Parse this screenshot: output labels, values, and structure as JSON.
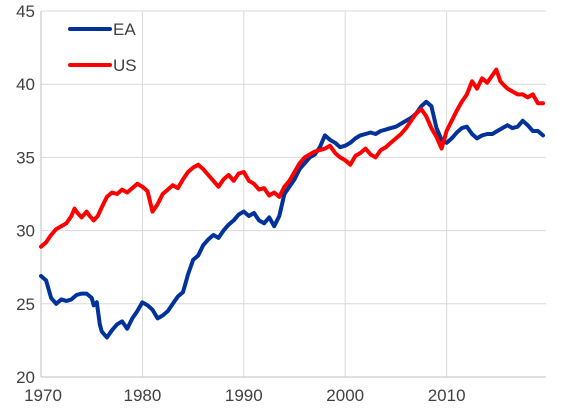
{
  "chart_data": {
    "type": "line",
    "title": "",
    "xlabel": "",
    "ylabel": "",
    "xlim": [
      1970,
      2019.8
    ],
    "ylim": [
      20,
      45
    ],
    "y_ticks": [
      20,
      25,
      30,
      35,
      40,
      45
    ],
    "x_ticks": [
      1970,
      1980,
      1990,
      2000,
      2010
    ],
    "grid": "both",
    "legend_position": "top-left",
    "series": [
      {
        "name": "EA",
        "color": "#003299",
        "points": [
          [
            1970.0,
            26.9
          ],
          [
            1970.5,
            26.6
          ],
          [
            1971.0,
            25.4
          ],
          [
            1971.5,
            25.0
          ],
          [
            1972.0,
            25.3
          ],
          [
            1972.5,
            25.2
          ],
          [
            1973.0,
            25.3
          ],
          [
            1973.5,
            25.6
          ],
          [
            1974.0,
            25.7
          ],
          [
            1974.5,
            25.7
          ],
          [
            1975.0,
            25.4
          ],
          [
            1975.2,
            24.9
          ],
          [
            1975.5,
            25.1
          ],
          [
            1975.8,
            23.6
          ],
          [
            1976.0,
            23.1
          ],
          [
            1976.5,
            22.7
          ],
          [
            1977.0,
            23.2
          ],
          [
            1977.5,
            23.6
          ],
          [
            1978.0,
            23.8
          ],
          [
            1978.5,
            23.3
          ],
          [
            1979.0,
            24.0
          ],
          [
            1979.5,
            24.5
          ],
          [
            1980.0,
            25.1
          ],
          [
            1980.5,
            24.9
          ],
          [
            1981.0,
            24.6
          ],
          [
            1981.5,
            24.0
          ],
          [
            1982.0,
            24.2
          ],
          [
            1982.5,
            24.5
          ],
          [
            1983.0,
            25.0
          ],
          [
            1983.5,
            25.5
          ],
          [
            1984.0,
            25.8
          ],
          [
            1984.5,
            27.0
          ],
          [
            1985.0,
            28.0
          ],
          [
            1985.5,
            28.3
          ],
          [
            1986.0,
            29.0
          ],
          [
            1986.5,
            29.4
          ],
          [
            1987.0,
            29.7
          ],
          [
            1987.5,
            29.5
          ],
          [
            1988.0,
            30.0
          ],
          [
            1988.5,
            30.4
          ],
          [
            1989.0,
            30.7
          ],
          [
            1989.5,
            31.1
          ],
          [
            1990.0,
            31.3
          ],
          [
            1990.5,
            31.0
          ],
          [
            1991.0,
            31.2
          ],
          [
            1991.5,
            30.7
          ],
          [
            1992.0,
            30.5
          ],
          [
            1992.5,
            30.9
          ],
          [
            1993.0,
            30.3
          ],
          [
            1993.5,
            31.0
          ],
          [
            1994.0,
            32.5
          ],
          [
            1994.5,
            33.0
          ],
          [
            1995.0,
            33.5
          ],
          [
            1995.5,
            34.2
          ],
          [
            1996.0,
            34.6
          ],
          [
            1996.5,
            35.0
          ],
          [
            1997.0,
            35.2
          ],
          [
            1997.5,
            35.7
          ],
          [
            1998.0,
            36.5
          ],
          [
            1998.5,
            36.2
          ],
          [
            1999.0,
            36.0
          ],
          [
            1999.5,
            35.7
          ],
          [
            2000.0,
            35.8
          ],
          [
            2000.5,
            36.0
          ],
          [
            2001.0,
            36.3
          ],
          [
            2001.5,
            36.5
          ],
          [
            2002.0,
            36.6
          ],
          [
            2002.5,
            36.7
          ],
          [
            2003.0,
            36.6
          ],
          [
            2003.5,
            36.8
          ],
          [
            2004.0,
            36.9
          ],
          [
            2004.5,
            37.0
          ],
          [
            2005.0,
            37.1
          ],
          [
            2005.5,
            37.3
          ],
          [
            2006.0,
            37.5
          ],
          [
            2006.5,
            37.7
          ],
          [
            2007.0,
            38.0
          ],
          [
            2007.5,
            38.5
          ],
          [
            2008.0,
            38.8
          ],
          [
            2008.5,
            38.5
          ],
          [
            2009.0,
            37.0
          ],
          [
            2009.5,
            36.2
          ],
          [
            2010.0,
            36.0
          ],
          [
            2010.5,
            36.3
          ],
          [
            2011.0,
            36.7
          ],
          [
            2011.5,
            37.0
          ],
          [
            2012.0,
            37.1
          ],
          [
            2012.5,
            36.6
          ],
          [
            2013.0,
            36.3
          ],
          [
            2013.5,
            36.5
          ],
          [
            2014.0,
            36.6
          ],
          [
            2014.5,
            36.6
          ],
          [
            2015.0,
            36.8
          ],
          [
            2015.5,
            37.0
          ],
          [
            2016.0,
            37.2
          ],
          [
            2016.5,
            37.0
          ],
          [
            2017.0,
            37.1
          ],
          [
            2017.5,
            37.5
          ],
          [
            2018.0,
            37.2
          ],
          [
            2018.5,
            36.8
          ],
          [
            2019.0,
            36.8
          ],
          [
            2019.5,
            36.5
          ]
        ]
      },
      {
        "name": "US",
        "color": "#ff0000",
        "points": [
          [
            1970.0,
            28.9
          ],
          [
            1970.5,
            29.2
          ],
          [
            1971.0,
            29.7
          ],
          [
            1971.5,
            30.1
          ],
          [
            1972.0,
            30.3
          ],
          [
            1972.5,
            30.5
          ],
          [
            1973.0,
            31.0
          ],
          [
            1973.3,
            31.5
          ],
          [
            1973.6,
            31.2
          ],
          [
            1974.0,
            30.9
          ],
          [
            1974.5,
            31.3
          ],
          [
            1974.8,
            31.0
          ],
          [
            1975.2,
            30.7
          ],
          [
            1975.6,
            31.0
          ],
          [
            1976.0,
            31.6
          ],
          [
            1976.5,
            32.3
          ],
          [
            1977.0,
            32.6
          ],
          [
            1977.5,
            32.5
          ],
          [
            1978.0,
            32.8
          ],
          [
            1978.5,
            32.6
          ],
          [
            1979.0,
            32.9
          ],
          [
            1979.5,
            33.2
          ],
          [
            1980.0,
            33.0
          ],
          [
            1980.5,
            32.7
          ],
          [
            1981.0,
            31.3
          ],
          [
            1981.5,
            31.8
          ],
          [
            1982.0,
            32.5
          ],
          [
            1982.5,
            32.8
          ],
          [
            1983.0,
            33.1
          ],
          [
            1983.5,
            32.9
          ],
          [
            1984.0,
            33.5
          ],
          [
            1984.5,
            34.0
          ],
          [
            1985.0,
            34.3
          ],
          [
            1985.5,
            34.5
          ],
          [
            1986.0,
            34.2
          ],
          [
            1986.5,
            33.8
          ],
          [
            1987.0,
            33.4
          ],
          [
            1987.5,
            33.0
          ],
          [
            1988.0,
            33.5
          ],
          [
            1988.5,
            33.8
          ],
          [
            1989.0,
            33.4
          ],
          [
            1989.5,
            33.9
          ],
          [
            1990.0,
            34.0
          ],
          [
            1990.5,
            33.4
          ],
          [
            1991.0,
            33.2
          ],
          [
            1991.5,
            32.8
          ],
          [
            1992.0,
            32.9
          ],
          [
            1992.5,
            32.4
          ],
          [
            1993.0,
            32.6
          ],
          [
            1993.5,
            32.3
          ],
          [
            1994.0,
            33.0
          ],
          [
            1994.5,
            33.4
          ],
          [
            1995.0,
            34.0
          ],
          [
            1995.5,
            34.6
          ],
          [
            1996.0,
            35.0
          ],
          [
            1996.5,
            35.2
          ],
          [
            1997.0,
            35.4
          ],
          [
            1997.5,
            35.5
          ],
          [
            1998.0,
            35.6
          ],
          [
            1998.5,
            35.8
          ],
          [
            1999.0,
            35.3
          ],
          [
            1999.5,
            35.0
          ],
          [
            2000.0,
            34.8
          ],
          [
            2000.5,
            34.5
          ],
          [
            2001.0,
            35.1
          ],
          [
            2001.5,
            35.3
          ],
          [
            2002.0,
            35.6
          ],
          [
            2002.5,
            35.2
          ],
          [
            2003.0,
            35.0
          ],
          [
            2003.5,
            35.5
          ],
          [
            2004.0,
            35.7
          ],
          [
            2004.5,
            36.0
          ],
          [
            2005.0,
            36.3
          ],
          [
            2005.5,
            36.6
          ],
          [
            2006.0,
            37.0
          ],
          [
            2006.5,
            37.5
          ],
          [
            2007.0,
            38.0
          ],
          [
            2007.5,
            38.3
          ],
          [
            2008.0,
            37.8
          ],
          [
            2008.5,
            37.0
          ],
          [
            2009.0,
            36.4
          ],
          [
            2009.5,
            35.6
          ],
          [
            2010.0,
            36.8
          ],
          [
            2010.5,
            37.5
          ],
          [
            2011.0,
            38.2
          ],
          [
            2011.5,
            38.8
          ],
          [
            2012.0,
            39.3
          ],
          [
            2012.5,
            40.2
          ],
          [
            2013.0,
            39.7
          ],
          [
            2013.5,
            40.4
          ],
          [
            2014.0,
            40.1
          ],
          [
            2014.5,
            40.6
          ],
          [
            2014.9,
            41.0
          ],
          [
            2015.3,
            40.2
          ],
          [
            2015.7,
            39.9
          ],
          [
            2016.0,
            39.7
          ],
          [
            2016.5,
            39.5
          ],
          [
            2017.0,
            39.3
          ],
          [
            2017.5,
            39.3
          ],
          [
            2018.0,
            39.1
          ],
          [
            2018.5,
            39.3
          ],
          [
            2019.0,
            38.7
          ],
          [
            2019.5,
            38.7
          ]
        ]
      }
    ]
  }
}
